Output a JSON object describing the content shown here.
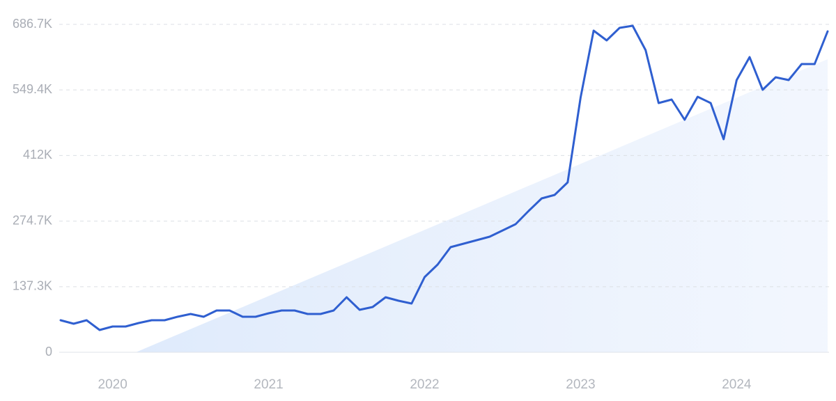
{
  "chart_data": {
    "type": "line",
    "categories": [
      null,
      null,
      null,
      null,
      "2020",
      null,
      null,
      null,
      null,
      null,
      null,
      null,
      null,
      null,
      null,
      null,
      "2021",
      null,
      null,
      null,
      null,
      null,
      null,
      null,
      null,
      null,
      null,
      null,
      "2022",
      null,
      null,
      null,
      null,
      null,
      null,
      null,
      null,
      null,
      null,
      null,
      "2023",
      null,
      null,
      null,
      null,
      null,
      null,
      null,
      null,
      null,
      null,
      null,
      "2024",
      null,
      null,
      null,
      null,
      null,
      null,
      null
    ],
    "series": [
      {
        "color": "#2f5fd0",
        "values": [
          67000,
          59800,
          67000,
          46700,
          53900,
          53900,
          61200,
          67000,
          67000,
          74400,
          80200,
          74400,
          87500,
          87500,
          74400,
          74400,
          81600,
          87500,
          87500,
          80200,
          80200,
          87500,
          115200,
          88900,
          94800,
          115200,
          107900,
          102100,
          157500,
          183700,
          220200,
          227400,
          234700,
          242000,
          255200,
          268300,
          296000,
          322200,
          329500,
          355800,
          533600,
          673600,
          653200,
          679400,
          683800,
          632800,
          522000,
          529300,
          487000,
          535100,
          522000,
          446100,
          570100,
          618200,
          549700,
          575900,
          570100,
          603600,
          603600,
          672100
        ]
      }
    ],
    "ylim": [
      0,
      686700
    ],
    "yticks": [
      0,
      {
        "value": 137300,
        "label": "137.3K"
      },
      {
        "value": 274700,
        "label": "274.7K"
      },
      {
        "value": 412000,
        "label": "412K"
      },
      {
        "value": 549400,
        "label": "549.4K"
      },
      {
        "value": 686700,
        "label": "686.7K"
      }
    ],
    "grid": true
  }
}
